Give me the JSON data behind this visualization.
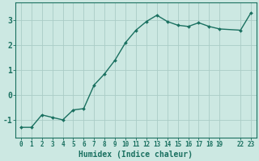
{
  "x": [
    0,
    1,
    2,
    3,
    4,
    5,
    6,
    7,
    8,
    9,
    10,
    11,
    12,
    13,
    14,
    15,
    16,
    17,
    18,
    19,
    22,
    23
  ],
  "y": [
    -1.3,
    -1.3,
    -0.8,
    -0.9,
    -1.0,
    -0.6,
    -0.55,
    0.4,
    0.85,
    1.4,
    2.1,
    2.6,
    2.95,
    3.2,
    2.95,
    2.8,
    2.75,
    2.9,
    2.75,
    2.65,
    2.6,
    3.3
  ],
  "x_plot": [
    0,
    1,
    2,
    3,
    4,
    5,
    6,
    7,
    8,
    9,
    10,
    11,
    12,
    13,
    14,
    15,
    16,
    17,
    18,
    19,
    21,
    22
  ],
  "line_color": "#1a7060",
  "marker_color": "#1a7060",
  "bg_color": "#cce8e2",
  "grid_color": "#aaccc6",
  "tick_color": "#1a7060",
  "xlabel": "Humidex (Indice chaleur)",
  "ylim": [
    -1.7,
    3.7
  ],
  "xlim": [
    -0.5,
    22.5
  ],
  "yticks": [
    -1,
    0,
    1,
    2,
    3
  ],
  "xtick_positions": [
    0,
    1,
    2,
    3,
    4,
    5,
    6,
    7,
    8,
    9,
    10,
    11,
    12,
    13,
    14,
    15,
    16,
    17,
    18,
    19,
    21,
    22
  ],
  "xtick_labels": [
    "0",
    "1",
    "2",
    "3",
    "4",
    "5",
    "6",
    "7",
    "8",
    "9",
    "10",
    "11",
    "12",
    "13",
    "14",
    "15",
    "16",
    "17",
    "18",
    "19",
    "22",
    "23"
  ]
}
